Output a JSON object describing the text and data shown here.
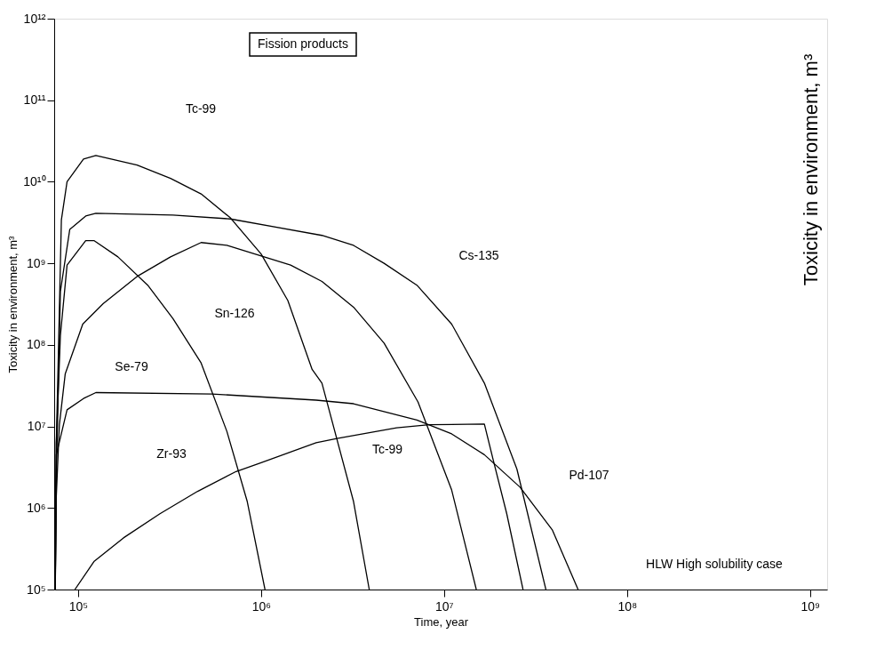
{
  "chart_data": {
    "type": "line",
    "xlabel": "Time, year",
    "ylabel": "Toxicity in environment, m³",
    "y2label": "Toxicity in environment, m³",
    "log": "xy",
    "grid": false,
    "legend": false,
    "marker": "none",
    "line_style": "solid",
    "xlim": [
      74000,
      1240000000
    ],
    "ylim": [
      100000,
      1000000000000
    ],
    "xticks": [
      {
        "value": 100000,
        "label": "10⁵"
      },
      {
        "value": 1000000,
        "label": "10⁶"
      },
      {
        "value": 10000000,
        "label": "10⁷"
      },
      {
        "value": 100000000,
        "label": "10⁸"
      },
      {
        "value": 1000000000,
        "label": "10⁹"
      }
    ],
    "yticks": [
      {
        "value": 100000,
        "label": "10⁵"
      },
      {
        "value": 1000000,
        "label": "10⁶"
      },
      {
        "value": 10000000,
        "label": "10⁷"
      },
      {
        "value": 100000000,
        "label": "10⁸"
      },
      {
        "value": 1000000000,
        "label": "10⁹"
      },
      {
        "value": 10000000000,
        "label": "10¹⁰"
      },
      {
        "value": 100000000000,
        "label": "10¹¹"
      },
      {
        "value": 1000000000000,
        "label": "10¹²"
      }
    ],
    "series": [
      {
        "color": "#000000",
        "x": [
          75000,
          76000,
          78000,
          81000,
          87000,
          107000,
          125000,
          210000,
          320000,
          470000,
          680000,
          1000000,
          1400000,
          1900000,
          2150000,
          3200000,
          3900000
        ],
        "values": [
          100000,
          6300000,
          78000000,
          3400000000,
          10000000000,
          19000000000,
          21000000000,
          16000000000,
          11000000000,
          7100000000,
          3600000000,
          1300000000,
          350000000,
          50000000,
          34000000,
          1200000,
          100000
        ]
      },
      {
        "color": "#000000",
        "x": [
          75000,
          76000,
          80000,
          90000,
          110000,
          125000,
          330000,
          680000,
          2150000,
          3200000,
          4700000,
          7100000,
          11000000,
          16600000,
          25000000,
          36000000
        ],
        "values": [
          100000,
          2300000,
          450000000,
          2600000000,
          3800000000,
          4100000000,
          3900000000,
          3500000000,
          2200000000,
          1660000000,
          1000000000,
          540000000,
          180000000,
          34000000,
          3000000,
          100000
        ]
      },
      {
        "color": "#000000",
        "x": [
          75000,
          76000,
          80000,
          87000,
          110000,
          122000,
          165000,
          240000,
          330000,
          470000,
          650000,
          840000,
          1050000
        ],
        "values": [
          100000,
          6300000,
          130000000,
          950000000,
          1900000000,
          1900000000,
          1200000000,
          540000000,
          210000000,
          60000000,
          8700000,
          1200000,
          100000
        ]
      },
      {
        "color": "#000000",
        "x": [
          75000,
          76000,
          79000,
          85000,
          106000,
          137000,
          210000,
          320000,
          470000,
          650000,
          1450000,
          2150000,
          3200000,
          4700000,
          7200000,
          11000000,
          15000000
        ],
        "values": [
          100000,
          1400000,
          10500000,
          44000000,
          180000000,
          320000000,
          690000000,
          1200000000,
          1800000000,
          1660000000,
          950000000,
          600000000,
          290000000,
          105000000,
          20000000,
          1660000,
          100000
        ]
      },
      {
        "color": "#000000",
        "x": [
          74500,
          76000,
          87000,
          107000,
          125000,
          540000,
          2000000,
          3200000,
          7100000,
          11000000,
          16600000,
          26000000,
          39000000,
          54000000
        ],
        "values": [
          100000,
          4500000,
          16000000,
          22000000,
          26000000,
          25000000,
          21000000,
          19000000,
          12000000,
          8100000,
          4500000,
          1800000,
          540000,
          100000
        ]
      },
      {
        "color": "#000000",
        "x": [
          96000,
          122000,
          177000,
          280000,
          450000,
          730000,
          1000000,
          2000000,
          2600000,
          5500000,
          8300000,
          16600000,
          18600000,
          22000000,
          27000000
        ],
        "values": [
          100000,
          220000,
          430000,
          850000,
          1600000,
          2800000,
          3600000,
          6300000,
          7100000,
          9600000,
          10500000,
          10700000,
          3800000,
          850000,
          100000
        ]
      }
    ],
    "annotations": [
      "Tc-99",
      "Sn-126",
      "Se-79",
      "Cs-135",
      "Zr-93",
      "Tc-99",
      "Pd-107",
      "Fission products",
      "HLW High solubility case"
    ]
  }
}
